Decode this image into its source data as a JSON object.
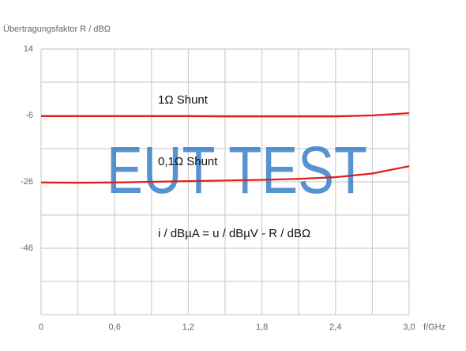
{
  "chart_data": {
    "type": "line",
    "y_label": "Übertragungsfaktor R / dBΩ",
    "x_label": "f/GHz",
    "x": [
      0,
      0.3,
      0.6,
      0.9,
      1.2,
      1.5,
      1.8,
      2.1,
      2.4,
      2.7,
      3.0
    ],
    "series": [
      {
        "name": "1Ω Shunt",
        "color": "#e01e1e",
        "values": [
          -6.2,
          -6.2,
          -6.2,
          -6.2,
          -6.2,
          -6.3,
          -6.3,
          -6.3,
          -6.3,
          -6.0,
          -5.3
        ]
      },
      {
        "name": "0,1Ω Shunt",
        "color": "#e01e1e",
        "values": [
          -26.2,
          -26.3,
          -26.2,
          -26.0,
          -25.8,
          -25.6,
          -25.4,
          -25.1,
          -24.6,
          -23.5,
          -21.3
        ]
      }
    ],
    "annotations": [
      "i / dBµA = u / dBµV - R / dBΩ",
      "EUT TEST"
    ],
    "xlim": [
      0,
      3.0
    ],
    "ylim": [
      -66,
      14
    ],
    "xticks": [
      {
        "value": 0,
        "label": "0"
      },
      {
        "value": 0.3,
        "label": null
      },
      {
        "value": 0.6,
        "label": "0,6"
      },
      {
        "value": 0.9,
        "label": null
      },
      {
        "value": 1.2,
        "label": "1,2"
      },
      {
        "value": 1.5,
        "label": null
      },
      {
        "value": 1.8,
        "label": "1,8"
      },
      {
        "value": 2.1,
        "label": null
      },
      {
        "value": 2.4,
        "label": "2,4"
      },
      {
        "value": 2.7,
        "label": null
      },
      {
        "value": 3.0,
        "label": "3,0"
      }
    ],
    "yticks": [
      14,
      {
        "value": 4,
        "label": null
      },
      -6,
      {
        "value": -16,
        "label": null
      },
      -26,
      {
        "value": -36,
        "label": null
      },
      -46,
      {
        "value": -56,
        "label": null
      },
      {
        "value": -66,
        "label": null
      }
    ],
    "grid": true
  }
}
